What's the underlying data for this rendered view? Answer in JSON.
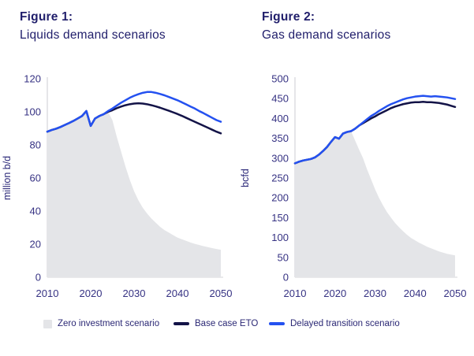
{
  "header": {
    "figure1_label": "Figure 1:",
    "figure1_title": "Liquids demand scenarios",
    "figure2_label": "Figure 2:",
    "figure2_title": "Gas demand scenarios"
  },
  "legend": {
    "items": [
      {
        "label": "Zero investment scenario",
        "swatch": "area",
        "color": "#e4e5e8"
      },
      {
        "label": "Base case ETO",
        "swatch": "line",
        "color": "#131347"
      },
      {
        "label": "Delayed transition scenario",
        "swatch": "line",
        "color": "#2451f0"
      }
    ]
  },
  "colors": {
    "background": "#ffffff",
    "title_text": "#201e6b",
    "tick_text": "#363283",
    "axis_line": "#d6d6da",
    "zero_investment_fill": "#e4e5e8",
    "base_case_line": "#131347",
    "delayed_transition_line": "#2451f0"
  },
  "chart_data": [
    {
      "type": "area",
      "title": "Figure 1: Liquids demand scenarios",
      "xlabel": "",
      "ylabel": "million b/d",
      "ylim": [
        0,
        120
      ],
      "ytick_step": 20,
      "xticks": [
        2010,
        2020,
        2030,
        2040,
        2050
      ],
      "grid": false,
      "legend_position": "bottom",
      "years": [
        2010,
        2011,
        2012,
        2013,
        2014,
        2015,
        2016,
        2017,
        2018,
        2019,
        2020,
        2021,
        2022,
        2023,
        2024,
        2025,
        2026,
        2027,
        2028,
        2029,
        2030,
        2031,
        2032,
        2033,
        2034,
        2035,
        2036,
        2037,
        2038,
        2039,
        2040,
        2041,
        2042,
        2043,
        2044,
        2045,
        2046,
        2047,
        2048,
        2049,
        2050
      ],
      "series": [
        {
          "name": "Zero investment scenario",
          "style": "area",
          "color": "#e4e5e8",
          "values": [
            88,
            89,
            89.8,
            90.8,
            92,
            93.2,
            94.5,
            96,
            97.5,
            100.5,
            91.5,
            96,
            97.5,
            98.6,
            100,
            95,
            85,
            76,
            67,
            59,
            52,
            46.5,
            42,
            38.5,
            35.5,
            33,
            30.5,
            28.5,
            27,
            25.5,
            24,
            23,
            22,
            21,
            20.2,
            19.5,
            18.8,
            18.2,
            17.6,
            17.1,
            16.6
          ]
        },
        {
          "name": "Base case ETO",
          "style": "line",
          "color": "#131347",
          "values": [
            88,
            89,
            89.8,
            90.8,
            92,
            93.2,
            94.5,
            96,
            97.5,
            100.5,
            91.5,
            96,
            97.5,
            98.6,
            100,
            101,
            102.2,
            103.2,
            104,
            104.6,
            105,
            105.2,
            105,
            104.6,
            104,
            103.3,
            102.5,
            101.6,
            100.7,
            99.7,
            98.7,
            97.6,
            96.4,
            95.2,
            94,
            92.8,
            91.6,
            90.4,
            89.2,
            88,
            87
          ]
        },
        {
          "name": "Delayed transition scenario",
          "style": "line",
          "color": "#2451f0",
          "values": [
            88,
            89,
            89.8,
            90.8,
            92,
            93.2,
            94.5,
            96,
            97.5,
            100.5,
            91.5,
            96,
            97.5,
            98.6,
            100.5,
            102,
            103.8,
            105.5,
            107,
            108.5,
            109.7,
            110.7,
            111.5,
            112,
            112,
            111.5,
            110.8,
            110,
            109,
            108,
            107,
            105.8,
            104.5,
            103.2,
            102,
            100.5,
            99.2,
            97.8,
            96.4,
            95,
            94
          ]
        }
      ]
    },
    {
      "type": "area",
      "title": "Figure 2: Gas demand scenarios",
      "xlabel": "",
      "ylabel": "bcfd",
      "ylim": [
        0,
        500
      ],
      "ytick_step": 50,
      "xticks": [
        2010,
        2020,
        2030,
        2040,
        2050
      ],
      "grid": false,
      "legend_position": "bottom",
      "years": [
        2010,
        2011,
        2012,
        2013,
        2014,
        2015,
        2016,
        2017,
        2018,
        2019,
        2020,
        2021,
        2022,
        2023,
        2024,
        2025,
        2026,
        2027,
        2028,
        2029,
        2030,
        2031,
        2032,
        2033,
        2034,
        2035,
        2036,
        2037,
        2038,
        2039,
        2040,
        2041,
        2042,
        2043,
        2044,
        2045,
        2046,
        2047,
        2048,
        2049,
        2050
      ],
      "series": [
        {
          "name": "Zero investment scenario",
          "style": "area",
          "color": "#e4e5e8",
          "values": [
            287,
            291,
            294,
            296,
            298,
            302,
            309,
            318,
            328,
            341,
            353,
            349,
            362,
            366,
            368,
            345,
            322,
            300,
            272,
            247,
            222,
            200,
            181,
            164,
            150,
            137,
            126,
            116,
            107,
            99,
            93,
            87,
            82,
            77,
            73,
            69,
            65,
            62,
            59,
            57,
            55
          ]
        },
        {
          "name": "Base case ETO",
          "style": "line",
          "color": "#131347",
          "values": [
            287,
            291,
            294,
            296,
            298,
            302,
            309,
            318,
            328,
            341,
            353,
            349,
            362,
            366,
            368,
            374,
            382,
            388,
            394,
            400,
            405,
            411,
            416,
            421,
            426,
            430,
            433,
            436,
            438,
            440,
            441,
            441,
            442,
            441,
            441,
            440,
            439,
            437,
            435,
            432,
            429
          ]
        },
        {
          "name": "Delayed transition scenario",
          "style": "line",
          "color": "#2451f0",
          "values": [
            287,
            291,
            294,
            296,
            298,
            302,
            309,
            318,
            328,
            341,
            353,
            349,
            362,
            366,
            368,
            374,
            382,
            390,
            398,
            406,
            412,
            419,
            425,
            431,
            436,
            440,
            444,
            448,
            451,
            453,
            455,
            456,
            457,
            456,
            455,
            456,
            455,
            454,
            453,
            451,
            449
          ]
        }
      ]
    }
  ]
}
